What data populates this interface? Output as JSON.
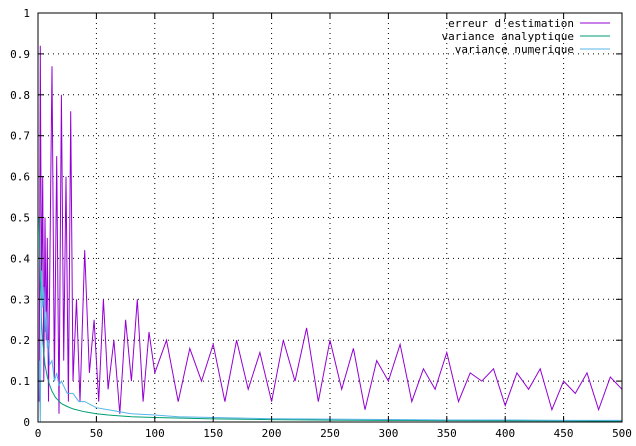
{
  "chart_data": {
    "type": "line",
    "title": "",
    "xlabel": "",
    "ylabel": "",
    "xlim": [
      0,
      500
    ],
    "ylim": [
      0,
      1
    ],
    "xticks": [
      0,
      50,
      100,
      150,
      200,
      250,
      300,
      350,
      400,
      450,
      500
    ],
    "yticks": [
      0,
      0.1,
      0.2,
      0.3,
      0.4,
      0.5,
      0.6,
      0.7,
      0.8,
      0.9,
      1
    ],
    "ytick_labels": [
      "0",
      "0.1",
      "0.2",
      "0.3",
      "0.4",
      "0.5",
      "0.6",
      "0.7",
      "0.8",
      "0.9",
      "1"
    ],
    "grid": true,
    "legend_position": "top-right",
    "series": [
      {
        "name": "erreur d'estimation",
        "color": "#9400d3",
        "x": [
          1,
          2,
          3,
          4,
          5,
          6,
          7,
          8,
          9,
          10,
          12,
          14,
          16,
          18,
          20,
          22,
          24,
          26,
          28,
          30,
          33,
          36,
          40,
          44,
          48,
          52,
          56,
          60,
          65,
          70,
          75,
          80,
          85,
          90,
          95,
          100,
          110,
          120,
          130,
          140,
          150,
          160,
          170,
          180,
          190,
          200,
          210,
          220,
          230,
          240,
          250,
          260,
          270,
          280,
          290,
          300,
          310,
          320,
          330,
          340,
          350,
          360,
          370,
          380,
          390,
          400,
          410,
          420,
          430,
          440,
          450,
          460,
          470,
          480,
          490,
          500
        ],
        "values": [
          0.05,
          0.92,
          0.3,
          0.6,
          0.1,
          0.5,
          0.2,
          0.45,
          0.05,
          0.35,
          0.87,
          0.1,
          0.65,
          0.02,
          0.8,
          0.15,
          0.6,
          0.05,
          0.76,
          0.1,
          0.3,
          0.05,
          0.42,
          0.12,
          0.25,
          0.05,
          0.3,
          0.08,
          0.2,
          0.02,
          0.25,
          0.1,
          0.3,
          0.05,
          0.22,
          0.12,
          0.2,
          0.05,
          0.18,
          0.1,
          0.19,
          0.05,
          0.2,
          0.08,
          0.17,
          0.05,
          0.2,
          0.1,
          0.23,
          0.05,
          0.2,
          0.08,
          0.18,
          0.03,
          0.15,
          0.1,
          0.19,
          0.05,
          0.13,
          0.08,
          0.17,
          0.05,
          0.12,
          0.1,
          0.13,
          0.04,
          0.12,
          0.08,
          0.13,
          0.03,
          0.1,
          0.07,
          0.12,
          0.03,
          0.11,
          0.08
        ]
      },
      {
        "name": "variance analyptique",
        "color": "#009e73",
        "x": [
          1,
          2,
          3,
          4,
          5,
          6,
          8,
          10,
          12,
          15,
          20,
          25,
          30,
          40,
          50,
          60,
          80,
          100,
          150,
          200,
          250,
          300,
          350,
          400,
          450,
          500
        ],
        "values": [
          0.5,
          0.35,
          0.25,
          0.2,
          0.17,
          0.14,
          0.11,
          0.09,
          0.075,
          0.06,
          0.045,
          0.038,
          0.032,
          0.025,
          0.02,
          0.017,
          0.013,
          0.011,
          0.0075,
          0.0058,
          0.0047,
          0.0039,
          0.0034,
          0.0029,
          0.0026,
          0.0023
        ]
      },
      {
        "name": "variance numerique",
        "color": "#56b4e9",
        "x": [
          1,
          2,
          3,
          4,
          5,
          6,
          7,
          8,
          9,
          10,
          12,
          14,
          16,
          18,
          20,
          25,
          30,
          35,
          40,
          50,
          60,
          70,
          80,
          100,
          120,
          150,
          200,
          250,
          300,
          350,
          400,
          450,
          500
        ],
        "values": [
          0.15,
          0.0,
          0.37,
          0.28,
          0.33,
          0.22,
          0.27,
          0.18,
          0.2,
          0.14,
          0.15,
          0.1,
          0.12,
          0.09,
          0.1,
          0.07,
          0.07,
          0.05,
          0.05,
          0.035,
          0.03,
          0.025,
          0.02,
          0.017,
          0.013,
          0.011,
          0.008,
          0.007,
          0.006,
          0.005,
          0.005,
          0.004,
          0.004
        ]
      }
    ]
  }
}
